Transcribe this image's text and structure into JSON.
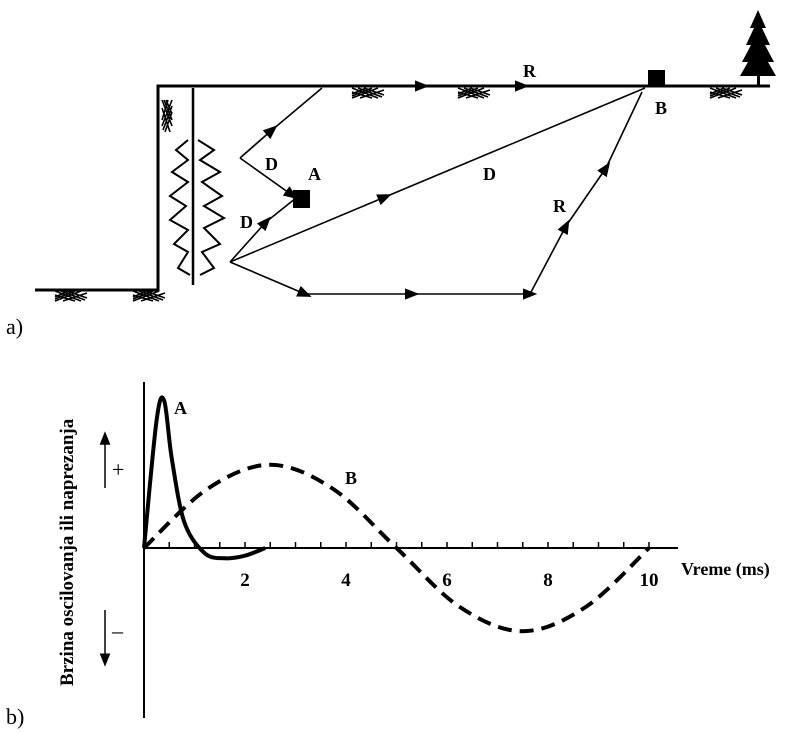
{
  "part_a": {
    "label": "a)",
    "point_a": "A",
    "point_b": "B",
    "wave_labels": {
      "direct_upper": "D",
      "direct_lower": "D",
      "direct_long": "D",
      "reflected_surface": "R",
      "reflected_deep": "R"
    },
    "icons": [
      "soil-hatch-icon",
      "tree-icon",
      "blast-flash-icon"
    ]
  },
  "part_b": {
    "label": "b)",
    "ylabel": "Brzina oscilovanja ili naprezanja",
    "xlabel": "Vreme (ms)",
    "plus_sign": "+",
    "minus_sign": "–",
    "x_ticks": [
      "2",
      "4",
      "6",
      "8",
      "10"
    ],
    "x_range_ms": [
      0,
      10.5
    ],
    "curves": [
      {
        "name": "A",
        "style": "solid",
        "t_ms": [
          0,
          0.25,
          0.4,
          0.55,
          0.8,
          1.2,
          1.6,
          2.0,
          2.4
        ],
        "v": [
          0,
          1.0,
          1.15,
          0.7,
          0.2,
          -0.04,
          -0.08,
          -0.06,
          0
        ]
      },
      {
        "name": "B",
        "style": "dashed",
        "t_ms": [
          0,
          1.25,
          2.5,
          3.75,
          5.0,
          6.25,
          7.5,
          8.75,
          10.0
        ],
        "v": [
          0,
          0.46,
          0.65,
          0.46,
          0,
          -0.46,
          -0.65,
          -0.46,
          0
        ]
      }
    ]
  }
}
